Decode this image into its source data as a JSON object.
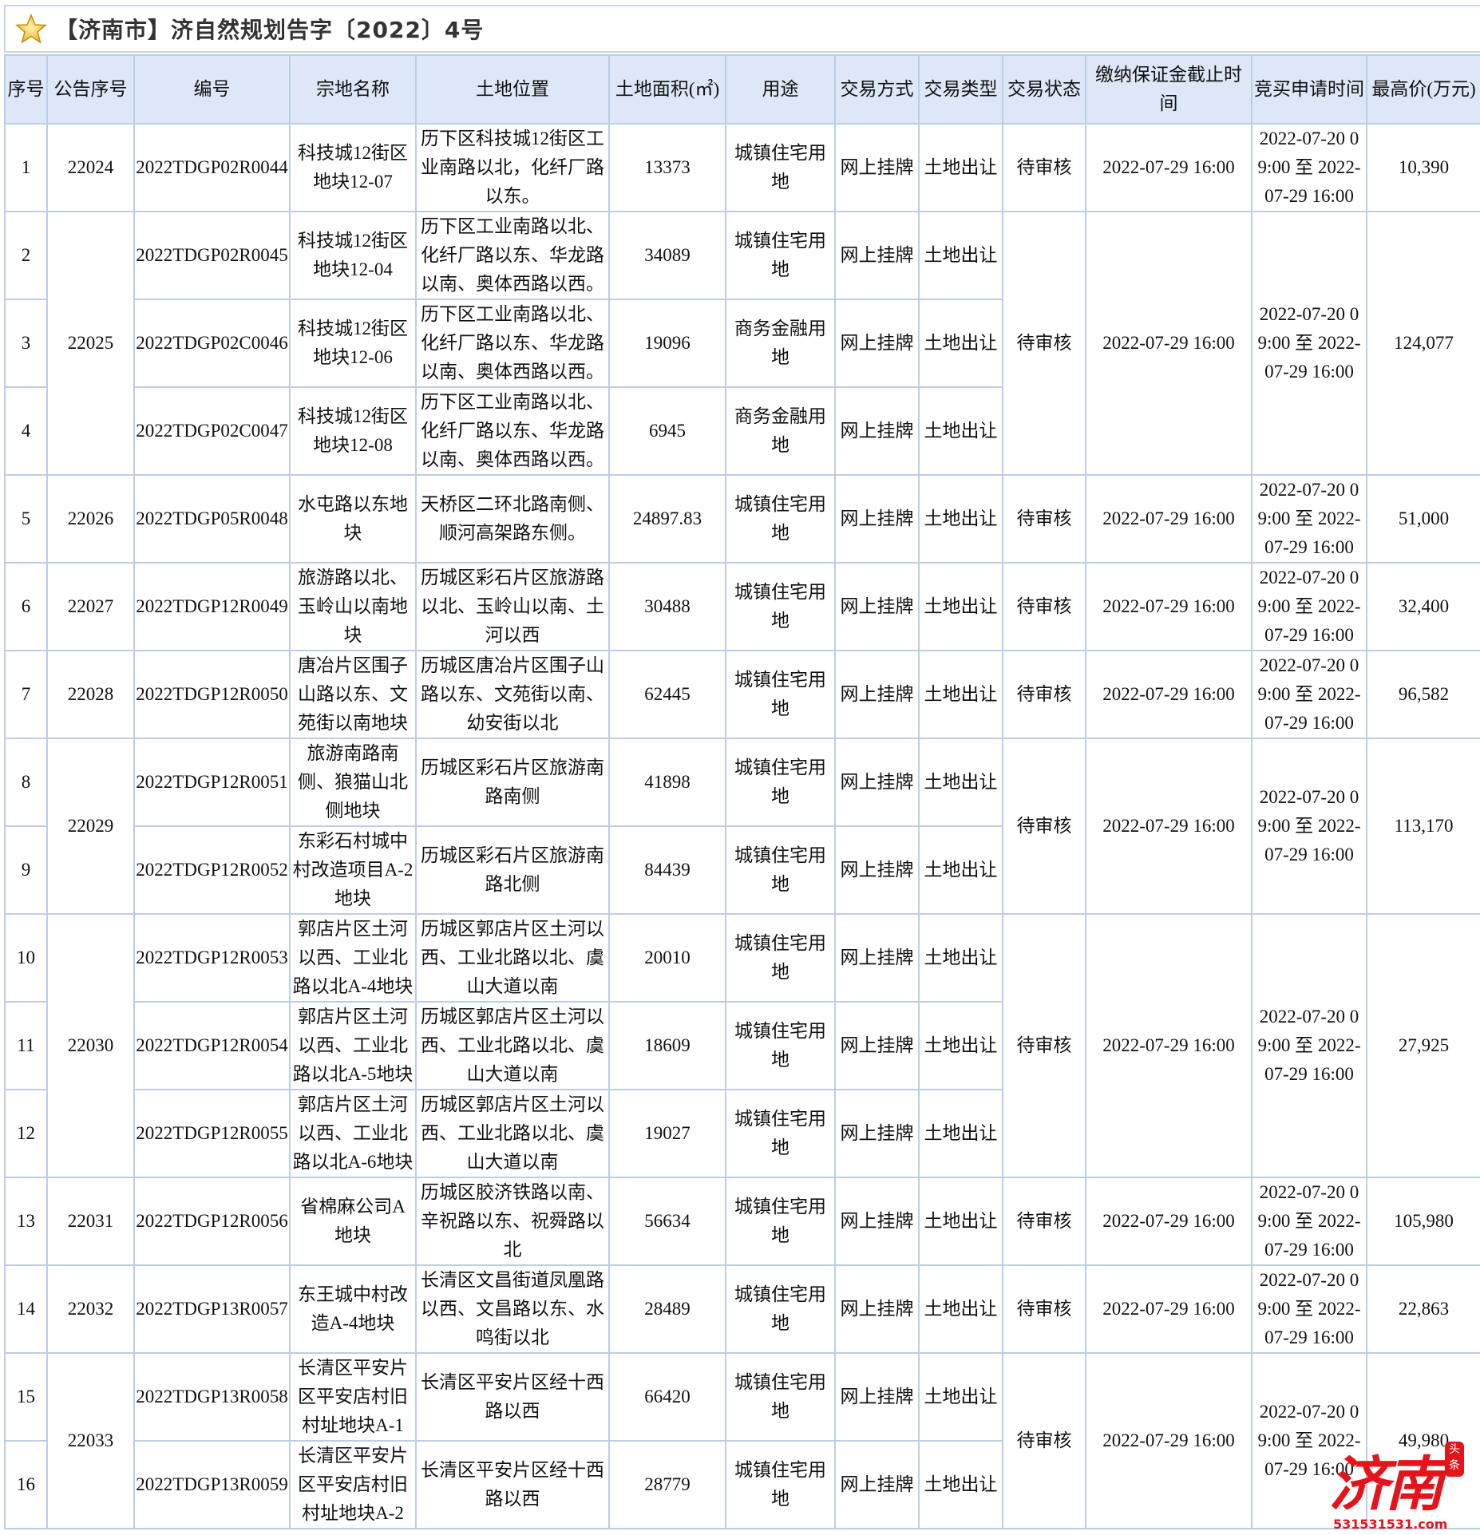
{
  "title": "【济南市】济自然规划告字〔2022〕4号",
  "icons": {
    "title_icon": "star-icon"
  },
  "colors": {
    "header_bg": "#dde7f7",
    "border": "#bccde6",
    "watermark": "#e5141b"
  },
  "columns": [
    "序号",
    "公告序号",
    "编号",
    "宗地名称",
    "土地位置",
    "土地面积(㎡)",
    "用途",
    "交易方式",
    "交易类型",
    "交易状态",
    "缴纳保证金截止时间",
    "竞买申请时间",
    "最高价(万元)"
  ],
  "groups": [
    {
      "notice_no": "22024",
      "status": "待审核",
      "deposit_deadline": "2022-07-29 16:00",
      "application_period": "2022-07-20 09:00 至 2022-07-29 16:00",
      "max_price": "10,390",
      "parcels": [
        {
          "no": "1",
          "code": "2022TDGP02R0044",
          "name": "科技城12街区地块12-07",
          "location": "历下区科技城12街区工业南路以北，化纤厂路以东。",
          "area": "13373",
          "use": "城镇住宅用地",
          "method": "网上挂牌",
          "type": "土地出让"
        }
      ]
    },
    {
      "notice_no": "22025",
      "status": "待审核",
      "deposit_deadline": "2022-07-29 16:00",
      "application_period": "2022-07-20 09:00 至 2022-07-29 16:00",
      "max_price": "124,077",
      "parcels": [
        {
          "no": "2",
          "code": "2022TDGP02R0045",
          "name": "科技城12街区地块12-04",
          "location": "历下区工业南路以北、化纤厂路以东、华龙路以南、奥体西路以西。",
          "area": "34089",
          "use": "城镇住宅用地",
          "method": "网上挂牌",
          "type": "土地出让"
        },
        {
          "no": "3",
          "code": "2022TDGP02C0046",
          "name": "科技城12街区地块12-06",
          "location": "历下区工业南路以北、化纤厂路以东、华龙路以南、奥体西路以西。",
          "area": "19096",
          "use": "商务金融用地",
          "method": "网上挂牌",
          "type": "土地出让"
        },
        {
          "no": "4",
          "code": "2022TDGP02C0047",
          "name": "科技城12街区地块12-08",
          "location": "历下区工业南路以北、化纤厂路以东、华龙路以南、奥体西路以西。",
          "area": "6945",
          "use": "商务金融用地",
          "method": "网上挂牌",
          "type": "土地出让"
        }
      ]
    },
    {
      "notice_no": "22026",
      "status": "待审核",
      "deposit_deadline": "2022-07-29 16:00",
      "application_period": "2022-07-20 09:00 至 2022-07-29 16:00",
      "max_price": "51,000",
      "parcels": [
        {
          "no": "5",
          "code": "2022TDGP05R0048",
          "name": "水屯路以东地块",
          "location": "天桥区二环北路南侧、顺河高架路东侧。",
          "area": "24897.83",
          "use": "城镇住宅用地",
          "method": "网上挂牌",
          "type": "土地出让"
        }
      ]
    },
    {
      "notice_no": "22027",
      "status": "待审核",
      "deposit_deadline": "2022-07-29 16:00",
      "application_period": "2022-07-20 09:00 至 2022-07-29 16:00",
      "max_price": "32,400",
      "parcels": [
        {
          "no": "6",
          "code": "2022TDGP12R0049",
          "name": "旅游路以北、玉岭山以南地块",
          "location": "历城区彩石片区旅游路以北、玉岭山以南、土河以西",
          "area": "30488",
          "use": "城镇住宅用地",
          "method": "网上挂牌",
          "type": "土地出让"
        }
      ]
    },
    {
      "notice_no": "22028",
      "status": "待审核",
      "deposit_deadline": "2022-07-29 16:00",
      "application_period": "2022-07-20 09:00 至 2022-07-29 16:00",
      "max_price": "96,582",
      "parcels": [
        {
          "no": "7",
          "code": "2022TDGP12R0050",
          "name": "唐冶片区围子山路以东、文苑街以南地块",
          "location": "历城区唐冶片区围子山路以东、文苑街以南、幼安街以北",
          "area": "62445",
          "use": "城镇住宅用地",
          "method": "网上挂牌",
          "type": "土地出让"
        }
      ]
    },
    {
      "notice_no": "22029",
      "status": "待审核",
      "deposit_deadline": "2022-07-29 16:00",
      "application_period": "2022-07-20 09:00 至 2022-07-29 16:00",
      "max_price": "113,170",
      "parcels": [
        {
          "no": "8",
          "code": "2022TDGP12R0051",
          "name": "旅游南路南侧、狼猫山北侧地块",
          "location": "历城区彩石片区旅游南路南侧",
          "area": "41898",
          "use": "城镇住宅用地",
          "method": "网上挂牌",
          "type": "土地出让"
        },
        {
          "no": "9",
          "code": "2022TDGP12R0052",
          "name": "东彩石村城中村改造项目A-2地块",
          "location": "历城区彩石片区旅游南路北侧",
          "area": "84439",
          "use": "城镇住宅用地",
          "method": "网上挂牌",
          "type": "土地出让"
        }
      ]
    },
    {
      "notice_no": "22030",
      "status": "待审核",
      "deposit_deadline": "2022-07-29 16:00",
      "application_period": "2022-07-20 09:00 至 2022-07-29 16:00",
      "max_price": "27,925",
      "parcels": [
        {
          "no": "10",
          "code": "2022TDGP12R0053",
          "name": "郭店片区土河以西、工业北路以北A-4地块",
          "location": "历城区郭店片区土河以西、工业北路以北、虞山大道以南",
          "area": "20010",
          "use": "城镇住宅用地",
          "method": "网上挂牌",
          "type": "土地出让"
        },
        {
          "no": "11",
          "code": "2022TDGP12R0054",
          "name": "郭店片区土河以西、工业北路以北A-5地块",
          "location": "历城区郭店片区土河以西、工业北路以北、虞山大道以南",
          "area": "18609",
          "use": "城镇住宅用地",
          "method": "网上挂牌",
          "type": "土地出让"
        },
        {
          "no": "12",
          "code": "2022TDGP12R0055",
          "name": "郭店片区土河以西、工业北路以北A-6地块",
          "location": "历城区郭店片区土河以西、工业北路以北、虞山大道以南",
          "area": "19027",
          "use": "城镇住宅用地",
          "method": "网上挂牌",
          "type": "土地出让"
        }
      ]
    },
    {
      "notice_no": "22031",
      "status": "待审核",
      "deposit_deadline": "2022-07-29 16:00",
      "application_period": "2022-07-20 09:00 至 2022-07-29 16:00",
      "max_price": "105,980",
      "parcels": [
        {
          "no": "13",
          "code": "2022TDGP12R0056",
          "name": "省棉麻公司A地块",
          "location": "历城区胶济铁路以南、辛祝路以东、祝舜路以北",
          "area": "56634",
          "use": "城镇住宅用地",
          "method": "网上挂牌",
          "type": "土地出让"
        }
      ]
    },
    {
      "notice_no": "22032",
      "status": "待审核",
      "deposit_deadline": "2022-07-29 16:00",
      "application_period": "2022-07-20 09:00 至 2022-07-29 16:00",
      "max_price": "22,863",
      "parcels": [
        {
          "no": "14",
          "code": "2022TDGP13R0057",
          "name": "东王城中村改造A-4地块",
          "location": "长清区文昌街道凤凰路以西、文昌路以东、水鸣街以北",
          "area": "28489",
          "use": "城镇住宅用地",
          "method": "网上挂牌",
          "type": "土地出让"
        }
      ]
    },
    {
      "notice_no": "22033",
      "status": "待审核",
      "deposit_deadline": "2022-07-29 16:00",
      "application_period": "2022-07-20 09:00 至 2022-07-29 16:00",
      "max_price": "49,980",
      "parcels": [
        {
          "no": "15",
          "code": "2022TDGP13R0058",
          "name": "长清区平安片区平安店村旧村址地块A-1",
          "location": "长清区平安片区经十西路以西",
          "area": "66420",
          "use": "城镇住宅用地",
          "method": "网上挂牌",
          "type": "土地出让"
        },
        {
          "no": "16",
          "code": "2022TDGP13R0059",
          "name": "长清区平安片区平安店村旧村址地块A-2",
          "location": "长清区平安片区经十西路以西",
          "area": "28779",
          "use": "城镇住宅用地",
          "method": "网上挂牌",
          "type": "土地出让"
        }
      ]
    }
  ],
  "watermark": {
    "logo_text": "济南",
    "seal_text": "头条",
    "url": "531531531.com"
  }
}
